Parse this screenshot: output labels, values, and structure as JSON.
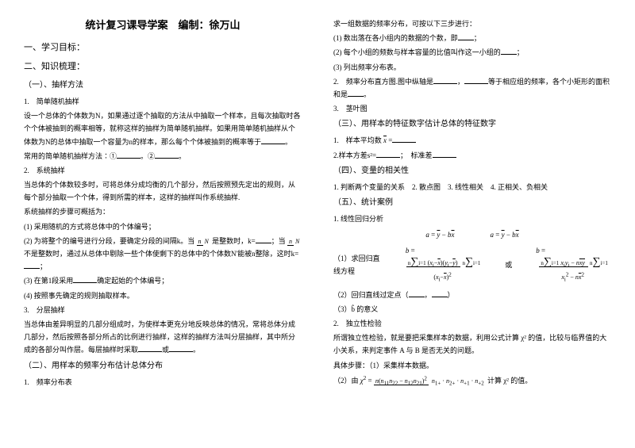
{
  "title": "统计复习课导学案　编制：徐万山",
  "left": {
    "s1": "一、学习目标：",
    "s2": "二、知识梳理：",
    "s21": "（一）、抽样方法",
    "s211": "1.　简单随机抽样",
    "p1": "设一个总体的个体数为N，如果通过逐个抽取的方法从中抽取一个样本，且每次抽取时各个个体被抽到的概率相等，就称这样的抽样为简单随机抽样。如果用简单随机抽样从个体数为N的总体中抽取一个容量为n的样本，那么每个个体被抽到的概率等于",
    "p1b": "。",
    "p2": "常用的简单随机抽样方法∶①",
    "p2b": "。②",
    "p2c": "。",
    "s212": "2.　系统抽样",
    "p3": "当总体的个体数较多时，可将总体分成均衡的几个部分，然后按照预先定出的规则，从每个部分抽取一个个体，得到所需的样本，这样的抽样叫作系统抽样.",
    "p4": "系统抽样的步骤可概括为：",
    "p4a": "(1) 采用随机的方式将总体中的个体编号；",
    "p4b": "(2) 为将整个的编号进行分段，要确定分段的间隔k。当",
    "p4b2": "是整数时，k=",
    "p4b3": "；当",
    "p4b4": "不是整数时，通过从总体中剔除一些个体使剩下的总体中的个体数N'能被n整除，这时k=",
    "p4b5": "；",
    "p4c": "(3) 在第1段采用",
    "p4c2": "确定起始的个体编号；",
    "p4d": "(4) 按照事先确定的规则抽取样本。",
    "s213": "3.　分层抽样",
    "p5": "当总体由差异明显的几部分组成时，为使样本更充分地反映总体的情况，常将总体分成几部分，然后按照各部分所占的比例进行抽样，这样的抽样方法叫分层抽样，其中所分成的各部分叫作层。每层抽样时采取",
    "p5b": "或",
    "p5c": "。",
    "s22": "（二）、用样本的频率分布估计总体分布",
    "s221": "1.　频率分布表"
  },
  "right": {
    "p1": "求一组数据的频率分布，可按以下三步进行：",
    "p1a": "(1) 数出落在各小组内的数据的个数，即",
    "p1a2": "；",
    "p1b": "(2) 每个小组的频数与样本容量的比值叫作这一小组的",
    "p1b2": "；",
    "p1c": "(3) 列出频率分布表。",
    "p2": "2.　频率分布直方图.图中纵轴是",
    "p2b": "，",
    "p2c": "等于相应组的频率，各个小矩形的面积和是",
    "p2d": "。",
    "s23": "3.　茎叶图",
    "s3": "（三）、用样本的特征数字估计总体的特征数字",
    "p3": "1.　样本平均数",
    "p3b": "=",
    "p4": "2.样本方差s²=",
    "p4b": "；　标准差",
    "s4": "（四）、变量的相关性",
    "p5": "1. 判断两个变量的关系　2. 散点图　3. 线性相关　4. 正相关、负相关",
    "s5": "（五）、统计案例",
    "s51": "1. 线性回归分析",
    "p6": "（1）求回归直线方程",
    "or": "或",
    "p7": "（2）回归直线过定点（",
    "p7b": "，",
    "p7c": "）",
    "p8": "（3）b̂ 的意义",
    "s52": "2.　独立性检验",
    "p9": "所谓独立性检验，就是要把采集样本的数据，利用公式计算 χ² 的值，比较与临界值的大小关系，来判定事件 A 与 B 是否无关的问题。",
    "p10": "具体步骤：（1）采集样本数据。",
    "p11": "（2）由",
    "p11b": "计算 χ² 的值。"
  },
  "style": {
    "bg": "#ffffff",
    "fg": "#000000",
    "title_size": 13,
    "h1_size": 11,
    "body_size": 9,
    "line_height": 1.8
  }
}
